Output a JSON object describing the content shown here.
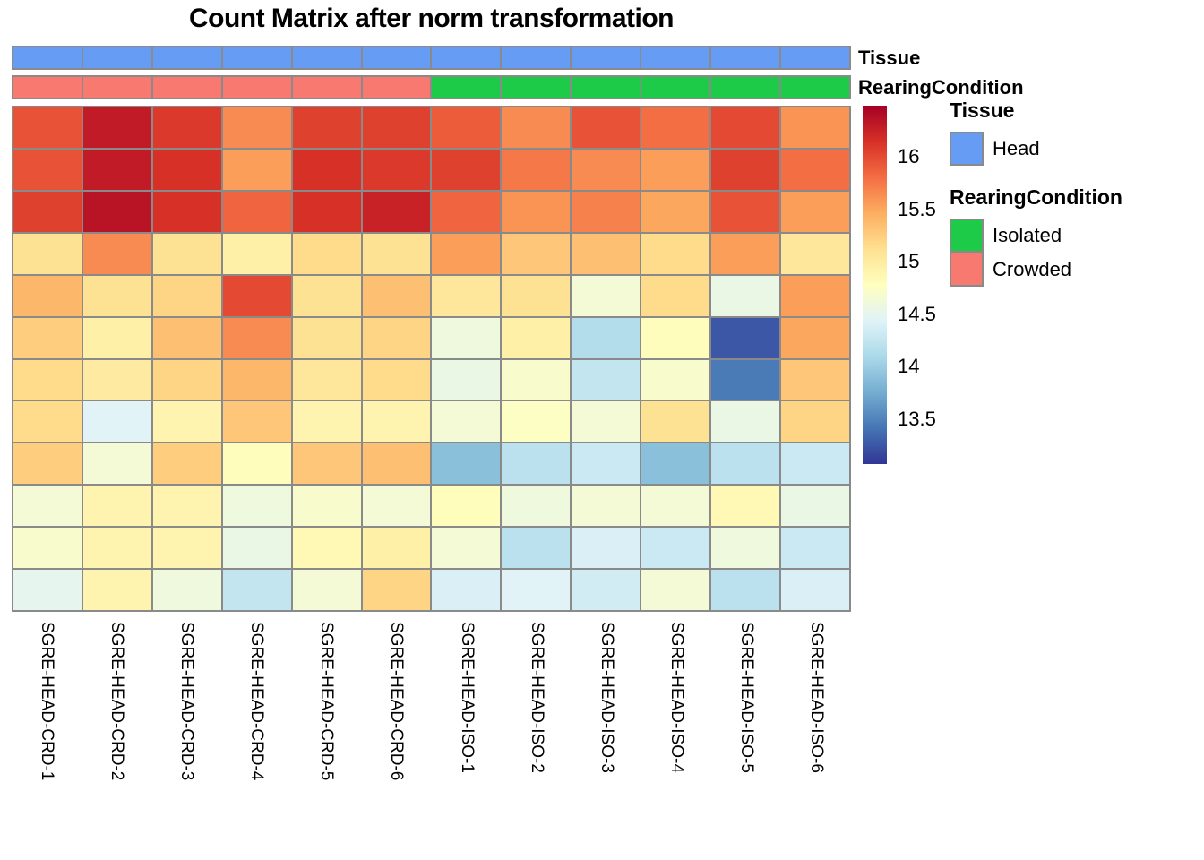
{
  "title": "Count Matrix after norm transformation",
  "annotation_bars": [
    {
      "name": "Tissue",
      "label": "Tissue",
      "cells": [
        "Head",
        "Head",
        "Head",
        "Head",
        "Head",
        "Head",
        "Head",
        "Head",
        "Head",
        "Head",
        "Head",
        "Head"
      ]
    },
    {
      "name": "RearingCondition",
      "label": "RearingCondition",
      "cells": [
        "Crowded",
        "Crowded",
        "Crowded",
        "Crowded",
        "Crowded",
        "Crowded",
        "Isolated",
        "Isolated",
        "Isolated",
        "Isolated",
        "Isolated",
        "Isolated"
      ]
    }
  ],
  "annotation_colors": {
    "Head": "#669CF4",
    "Isolated": "#1ECB48",
    "Crowded": "#F8796F"
  },
  "legend_groups": [
    {
      "title": "Tissue",
      "items": [
        {
          "label": "Head",
          "color": "#669CF4"
        }
      ]
    },
    {
      "title": "RearingCondition",
      "items": [
        {
          "label": "Isolated",
          "color": "#1ECB48"
        },
        {
          "label": "Crowded",
          "color": "#F8796F"
        }
      ]
    }
  ],
  "colorbar": {
    "tick_labels": [
      "16",
      "15.5",
      "15",
      "14.5",
      "14",
      "13.5"
    ],
    "tick_values": [
      16,
      15.5,
      15,
      14.5,
      14,
      13.5
    ]
  },
  "chart_data": {
    "type": "heatmap",
    "title": "Count Matrix after norm transformation",
    "columns": [
      "SGRE-HEAD-CRD-1",
      "SGRE-HEAD-CRD-2",
      "SGRE-HEAD-CRD-3",
      "SGRE-HEAD-CRD-4",
      "SGRE-HEAD-CRD-5",
      "SGRE-HEAD-CRD-6",
      "SGRE-HEAD-ISO-1",
      "SGRE-HEAD-ISO-2",
      "SGRE-HEAD-ISO-3",
      "SGRE-HEAD-ISO-4",
      "SGRE-HEAD-ISO-5",
      "SGRE-HEAD-ISO-6"
    ],
    "column_annotations": {
      "Tissue": [
        "Head",
        "Head",
        "Head",
        "Head",
        "Head",
        "Head",
        "Head",
        "Head",
        "Head",
        "Head",
        "Head",
        "Head"
      ],
      "RearingCondition": [
        "Crowded",
        "Crowded",
        "Crowded",
        "Crowded",
        "Crowded",
        "Crowded",
        "Isolated",
        "Isolated",
        "Isolated",
        "Isolated",
        "Isolated",
        "Isolated"
      ]
    },
    "n_rows": 12,
    "values": [
      [
        15.95,
        16.3,
        16.1,
        15.65,
        16.05,
        16.05,
        15.9,
        15.65,
        15.95,
        15.8,
        16.0,
        15.6
      ],
      [
        15.95,
        16.3,
        16.15,
        15.55,
        16.15,
        16.1,
        16.05,
        15.75,
        15.65,
        15.55,
        16.05,
        15.8
      ],
      [
        16.05,
        16.35,
        16.15,
        15.85,
        16.15,
        16.25,
        15.85,
        15.6,
        15.7,
        15.5,
        15.95,
        15.55
      ],
      [
        15.1,
        15.65,
        15.1,
        14.95,
        15.15,
        15.1,
        15.55,
        15.3,
        15.35,
        15.15,
        15.55,
        15.05
      ],
      [
        15.4,
        15.1,
        15.2,
        16.0,
        15.1,
        15.35,
        15.05,
        15.1,
        14.65,
        15.15,
        14.55,
        15.55
      ],
      [
        15.25,
        14.95,
        15.35,
        15.65,
        15.1,
        15.2,
        14.6,
        14.95,
        14.15,
        14.8,
        13.25,
        15.5
      ],
      [
        15.15,
        15.0,
        15.2,
        15.4,
        15.05,
        15.15,
        14.55,
        14.7,
        14.25,
        14.7,
        13.45,
        15.3
      ],
      [
        15.15,
        14.45,
        14.9,
        15.3,
        14.9,
        14.9,
        14.65,
        14.75,
        14.65,
        15.1,
        14.55,
        15.2
      ],
      [
        15.25,
        14.65,
        15.25,
        14.8,
        15.3,
        15.35,
        13.9,
        14.2,
        14.3,
        13.9,
        14.2,
        14.3
      ],
      [
        14.65,
        14.9,
        14.9,
        14.6,
        14.7,
        14.65,
        14.8,
        14.6,
        14.65,
        14.65,
        14.85,
        14.55
      ],
      [
        14.7,
        14.9,
        14.9,
        14.55,
        14.85,
        14.95,
        14.65,
        14.2,
        14.4,
        14.3,
        14.6,
        14.3
      ],
      [
        14.5,
        14.9,
        14.6,
        14.25,
        14.65,
        15.2,
        14.4,
        14.45,
        14.35,
        14.65,
        14.2,
        14.4
      ]
    ],
    "color_scale": {
      "palette": "RdYlBu reversed",
      "min": 13.07,
      "max": 16.49,
      "stops": [
        "#313695",
        "#4575B4",
        "#74ADD1",
        "#ABD9E9",
        "#E0F3F8",
        "#FFFFBF",
        "#FEE090",
        "#FDAE61",
        "#F46D43",
        "#D73027",
        "#A50026"
      ],
      "legend_ticks": [
        16,
        15.5,
        15,
        14.5,
        14,
        13.5
      ]
    },
    "grid": true,
    "grid_color": "#8a8a8a",
    "legend_position": "right"
  }
}
